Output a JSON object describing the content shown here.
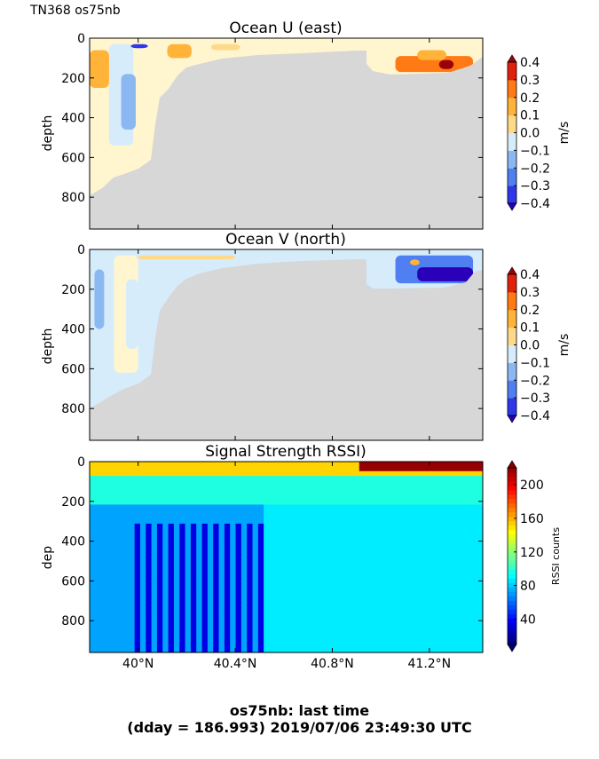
{
  "header": {
    "label": "TN368 os75nb"
  },
  "caption": {
    "line1": "os75nb: last time",
    "line2": "(dday = 186.993) 2019/07/06 23:49:30 UTC"
  },
  "colors": {
    "land": "#d7d7d7",
    "diverging": [
      "#2a00b8",
      "#2e38e8",
      "#4f7ff0",
      "#8cb8f2",
      "#d6ecfb",
      "#fff5cf",
      "#ffd98a",
      "#ffb338",
      "#ff7a14",
      "#e0220d",
      "#9c0008"
    ],
    "jet": [
      "#00007f",
      "#0000ff",
      "#007fff",
      "#00ffff",
      "#7fff7f",
      "#ffff00",
      "#ff7f00",
      "#ff0000",
      "#7f0000"
    ]
  },
  "chart_data": [
    {
      "type": "heatmap",
      "title": "Ocean U (east)",
      "ylabel": "depth",
      "ylim": [
        960,
        0
      ],
      "xlim": [
        39.8,
        41.42
      ],
      "y_ticks": [
        0,
        200,
        400,
        600,
        800
      ],
      "x_ticks": [
        40.0,
        40.4,
        40.8,
        41.2
      ],
      "colorbar": {
        "label": "m/s",
        "ticks": [
          0.4,
          0.3,
          0.2,
          0.1,
          0.0,
          -0.1,
          -0.2,
          -0.3,
          -0.4
        ],
        "tick_labels": [
          "0.4",
          "0.3",
          "0.2",
          "0.1",
          "0.0",
          "−0.1",
          "−0.2",
          "−0.3",
          "−0.4"
        ],
        "range": [
          -0.4,
          0.4
        ]
      },
      "regions": [
        {
          "x": [
            39.8,
            39.9
          ],
          "depth": [
            30,
            900
          ],
          "value": 0.03
        },
        {
          "x": [
            39.88,
            39.98
          ],
          "depth": [
            30,
            540
          ],
          "value": -0.07
        },
        {
          "x": [
            39.93,
            39.99
          ],
          "depth": [
            180,
            460
          ],
          "value": -0.14
        },
        {
          "x": [
            39.8,
            39.88
          ],
          "depth": [
            60,
            250
          ],
          "value": 0.12
        },
        {
          "x": [
            39.97,
            40.04
          ],
          "depth": [
            30,
            50
          ],
          "value": -0.35
        },
        {
          "x": [
            40.12,
            40.22
          ],
          "depth": [
            30,
            100
          ],
          "value": 0.15
        },
        {
          "x": [
            40.3,
            40.42
          ],
          "depth": [
            30,
            60
          ],
          "value": 0.05
        },
        {
          "x": [
            41.06,
            41.38
          ],
          "depth": [
            90,
            170
          ],
          "value": 0.22
        },
        {
          "x": [
            41.15,
            41.27
          ],
          "depth": [
            60,
            110
          ],
          "value": 0.12
        },
        {
          "x": [
            41.24,
            41.3
          ],
          "depth": [
            110,
            155
          ],
          "value": 0.36
        }
      ]
    },
    {
      "type": "heatmap",
      "title": "Ocean V (north)",
      "ylabel": "depth",
      "ylim": [
        960,
        0
      ],
      "xlim": [
        39.8,
        41.42
      ],
      "y_ticks": [
        0,
        200,
        400,
        600,
        800
      ],
      "x_ticks": [
        40.0,
        40.4,
        40.8,
        41.2
      ],
      "colorbar": {
        "label": "m/s",
        "ticks": [
          0.4,
          0.3,
          0.2,
          0.1,
          0.0,
          -0.1,
          -0.2,
          -0.3,
          -0.4
        ],
        "tick_labels": [
          "0.4",
          "0.3",
          "0.2",
          "0.1",
          "0.0",
          "−0.1",
          "−0.2",
          "−0.3",
          "−0.4"
        ],
        "range": [
          -0.4,
          0.4
        ]
      },
      "regions": [
        {
          "x": [
            39.8,
            39.9
          ],
          "depth": [
            30,
            900
          ],
          "value": -0.08
        },
        {
          "x": [
            39.82,
            39.86
          ],
          "depth": [
            100,
            400
          ],
          "value": -0.15
        },
        {
          "x": [
            39.9,
            40.0
          ],
          "depth": [
            30,
            620
          ],
          "value": 0.04
        },
        {
          "x": [
            39.95,
            40.0
          ],
          "depth": [
            150,
            500
          ],
          "value": -0.06
        },
        {
          "x": [
            40.0,
            40.4
          ],
          "depth": [
            30,
            50
          ],
          "value": 0.06
        },
        {
          "x": [
            41.06,
            41.38
          ],
          "depth": [
            30,
            170
          ],
          "value": -0.28
        },
        {
          "x": [
            41.15,
            41.38
          ],
          "depth": [
            90,
            160
          ],
          "value": -0.42
        },
        {
          "x": [
            41.12,
            41.16
          ],
          "depth": [
            50,
            80
          ],
          "value": 0.15
        }
      ]
    },
    {
      "type": "heatmap",
      "title": "Signal Strength RSSI)",
      "ylabel": "dep",
      "ylim": [
        960,
        0
      ],
      "xlim": [
        39.8,
        41.42
      ],
      "y_ticks": [
        0,
        200,
        400,
        600,
        800
      ],
      "x_ticks": [
        40.0,
        40.4,
        40.8,
        41.2
      ],
      "x_tick_labels": [
        "40°N",
        "40.4°N",
        "40.8°N",
        "41.2°N"
      ],
      "colorbar": {
        "label": "RSSI counts",
        "ticks": [
          200,
          160,
          120,
          80,
          40
        ],
        "tick_labels": [
          "200",
          "160",
          "120",
          "80",
          "40"
        ],
        "range": [
          10,
          220
        ]
      },
      "layers": [
        {
          "depth": [
            0,
            60
          ],
          "value": 150
        },
        {
          "depth": [
            60,
            200
          ],
          "value": 95
        },
        {
          "depth": [
            200,
            960
          ],
          "value": 70
        }
      ],
      "deep_stripes": {
        "x": [
          39.98,
          40.5
        ],
        "depth": [
          300,
          960
        ],
        "value": 30
      },
      "surface_peak": {
        "x": [
          40.9,
          41.4
        ],
        "depth": [
          0,
          40
        ],
        "value": 215
      }
    }
  ]
}
